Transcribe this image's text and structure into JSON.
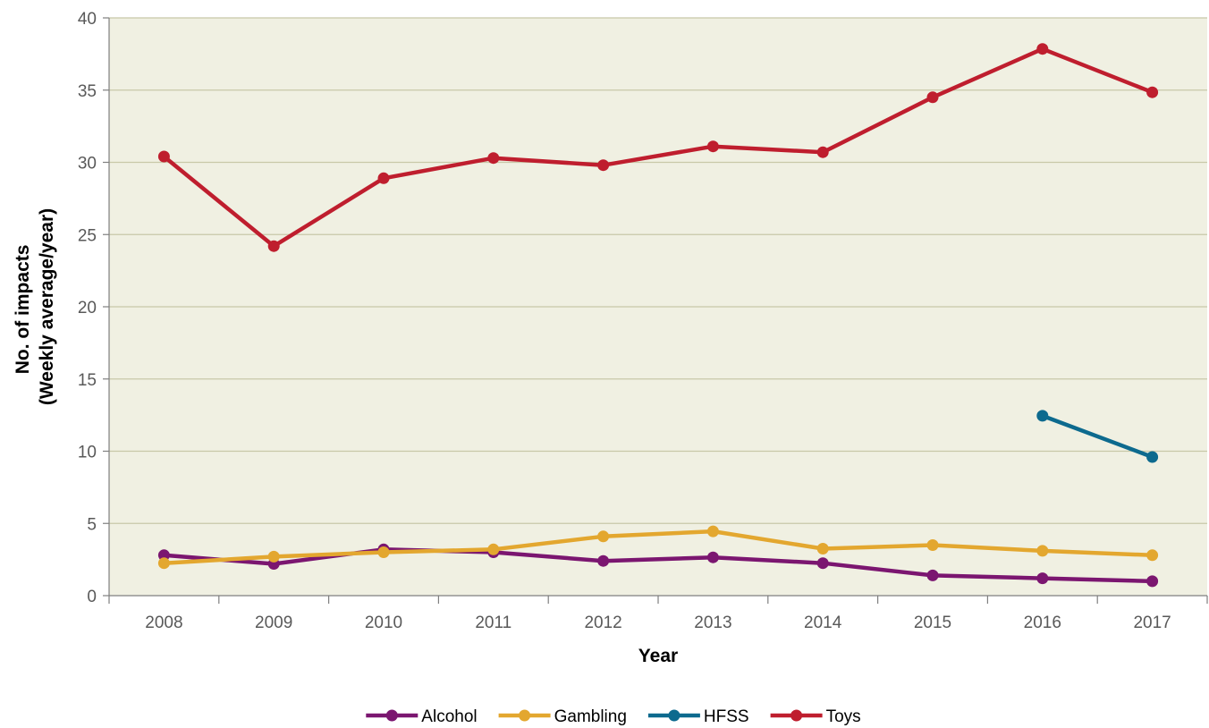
{
  "chart_data": {
    "type": "line",
    "title": "",
    "xlabel": "Year",
    "ylabel_line1": "No. of impacts",
    "ylabel_line2": "(Weekly average/year)",
    "categories": [
      "2008",
      "2009",
      "2010",
      "2011",
      "2012",
      "2013",
      "2014",
      "2015",
      "2016",
      "2017"
    ],
    "ylim": [
      0,
      40
    ],
    "yticks": [
      0,
      5,
      10,
      15,
      20,
      25,
      30,
      35,
      40
    ],
    "grid": true,
    "legend_position": "bottom",
    "plot_background": "#f0f0e2",
    "gridline_color": "#c8c8a8",
    "series": [
      {
        "name": "Alcohol",
        "color": "#7b1670",
        "values": [
          2.8,
          2.2,
          3.2,
          3.0,
          2.4,
          2.65,
          2.25,
          1.4,
          1.2,
          1.0
        ]
      },
      {
        "name": "Gambling",
        "color": "#e3a72f",
        "values": [
          2.25,
          2.7,
          3.0,
          3.2,
          4.1,
          4.45,
          3.25,
          3.5,
          3.1,
          2.8
        ]
      },
      {
        "name": "HFSS",
        "color": "#0d6a8e",
        "values": [
          null,
          null,
          null,
          null,
          null,
          null,
          null,
          null,
          12.45,
          9.6
        ]
      },
      {
        "name": "Toys",
        "color": "#bf1e2e",
        "values": [
          30.4,
          24.2,
          28.9,
          30.3,
          29.8,
          31.1,
          30.7,
          34.5,
          37.85,
          34.85
        ]
      }
    ]
  }
}
